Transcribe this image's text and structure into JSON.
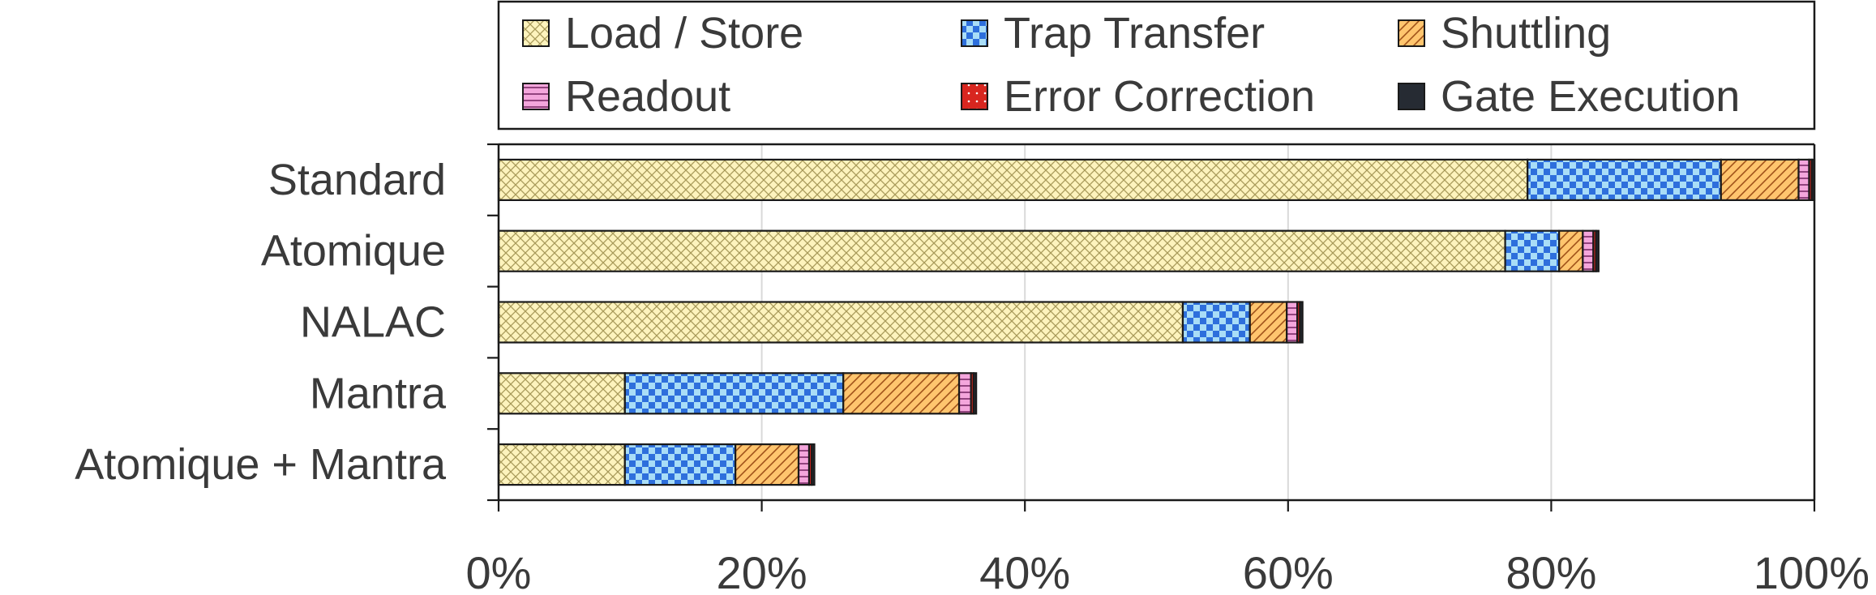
{
  "chart_data": {
    "type": "bar",
    "orientation": "horizontal",
    "stacked": true,
    "categories": [
      "Standard",
      "Atomique",
      "NALAC",
      "Mantra",
      "Atomique + Mantra"
    ],
    "series": [
      {
        "name": "Load / Store",
        "values": [
          78.2,
          76.5,
          52.0,
          9.6,
          9.6
        ],
        "color": "#fdf3bd",
        "pattern": "crosshatch"
      },
      {
        "name": "Trap Transfer",
        "values": [
          14.7,
          4.1,
          5.1,
          16.6,
          8.4
        ],
        "color": "#2e6fdc",
        "pattern": "checker"
      },
      {
        "name": "Shuttling",
        "values": [
          5.9,
          1.8,
          2.8,
          8.8,
          4.8
        ],
        "color": "#ffc56e",
        "pattern": "diagonal"
      },
      {
        "name": "Readout",
        "values": [
          0.8,
          0.8,
          0.8,
          0.9,
          0.8
        ],
        "color": "#f4a6dc",
        "pattern": "horizontal"
      },
      {
        "name": "Error Correction",
        "values": [
          0.2,
          0.2,
          0.2,
          0.2,
          0.2
        ],
        "color": "#d8261f",
        "pattern": "dots"
      },
      {
        "name": "Gate Execution",
        "values": [
          0.2,
          0.2,
          0.2,
          0.2,
          0.2
        ],
        "color": "#262b33",
        "pattern": "solid"
      }
    ],
    "xlim": [
      0,
      100
    ],
    "xticks": [
      0,
      20,
      40,
      60,
      80,
      100
    ],
    "xtick_labels": [
      "0%",
      "20%",
      "40%",
      "60%",
      "80%",
      "100%"
    ],
    "grid": "vertical",
    "legend": "top"
  }
}
